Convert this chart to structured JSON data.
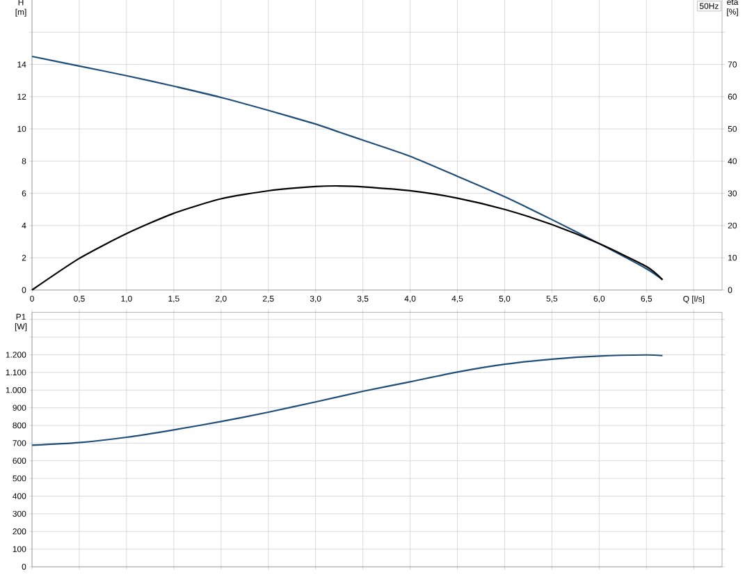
{
  "chart_data": [
    {
      "type": "line",
      "xlabel": "Q [l/s]",
      "ylabel": "H [m]",
      "y2label": "eta [%]",
      "annotations": [
        "50Hz"
      ],
      "x": [
        0,
        0.5,
        1.0,
        1.5,
        2.0,
        2.5,
        3.0,
        3.25,
        3.5,
        4.0,
        4.5,
        5.0,
        5.5,
        6.0,
        6.5,
        6.67
      ],
      "series": [
        {
          "color": "#1f4e79",
          "axis": "y",
          "values": [
            14.5,
            13.9,
            13.3,
            12.65,
            11.95,
            11.15,
            10.3,
            9.8,
            9.3,
            8.3,
            7.06,
            5.79,
            4.37,
            2.88,
            1.32,
            0.64
          ]
        },
        {
          "color": "#000000",
          "axis": "y2",
          "values": [
            0,
            9.8,
            17.5,
            23.8,
            28.3,
            30.8,
            32.1,
            32.3,
            32.0,
            30.8,
            28.5,
            25.0,
            20.3,
            14.4,
            7.3,
            3.2
          ]
        }
      ],
      "xlim": [
        0,
        7.3
      ],
      "xticks": [
        0,
        {
          "value": 0.5,
          "label": "0,5"
        },
        {
          "value": 1.0,
          "label": "1,0"
        },
        {
          "value": 1.5,
          "label": "1,5"
        },
        {
          "value": 2.0,
          "label": "2,0"
        },
        {
          "value": 2.5,
          "label": "2,5"
        },
        {
          "value": 3.0,
          "label": "3,0"
        },
        {
          "value": 3.5,
          "label": "3,5"
        },
        {
          "value": 4.0,
          "label": "4,0"
        },
        {
          "value": 4.5,
          "label": "4,5"
        },
        {
          "value": 5.0,
          "label": "5,0"
        },
        {
          "value": 5.5,
          "label": "5,5"
        },
        {
          "value": 6.0,
          "label": "6,0"
        },
        {
          "value": 6.5,
          "label": "6,5"
        },
        {
          "value": 7.0,
          "label": null
        }
      ],
      "ylim": [
        0,
        18
      ],
      "yticks": [
        0,
        2,
        4,
        6,
        8,
        10,
        12,
        14,
        {
          "value": 16,
          "label": null
        }
      ],
      "y2lim": [
        0,
        90
      ],
      "y2ticks": [
        0,
        10,
        20,
        30,
        40,
        50,
        60,
        70,
        {
          "value": 80,
          "label": null
        }
      ],
      "grid": true
    },
    {
      "type": "line",
      "ylabel": "P1 [W]",
      "x": [
        0,
        0.5,
        1.0,
        1.5,
        2.0,
        2.5,
        3.0,
        3.5,
        4.0,
        4.5,
        5.0,
        5.5,
        6.0,
        6.5,
        6.67
      ],
      "series": [
        {
          "color": "#1f4e79",
          "values": [
            688,
            703,
            733,
            775,
            822,
            875,
            933,
            993,
            1047,
            1102,
            1146,
            1175,
            1193,
            1199,
            1195
          ]
        }
      ],
      "xlim": [
        0,
        7.3
      ],
      "xticks": [
        {
          "value": 0,
          "label": null
        },
        {
          "value": 0.5,
          "label": null
        },
        {
          "value": 1.0,
          "label": null
        },
        {
          "value": 1.5,
          "label": null
        },
        {
          "value": 2.0,
          "label": null
        },
        {
          "value": 2.5,
          "label": null
        },
        {
          "value": 3.0,
          "label": null
        },
        {
          "value": 3.5,
          "label": null
        },
        {
          "value": 4.0,
          "label": null
        },
        {
          "value": 4.5,
          "label": null
        },
        {
          "value": 5.0,
          "label": null
        },
        {
          "value": 5.5,
          "label": null
        },
        {
          "value": 6.0,
          "label": null
        },
        {
          "value": 6.5,
          "label": null
        },
        {
          "value": 7.0,
          "label": null
        }
      ],
      "ylim": [
        0,
        1440
      ],
      "yticks": [
        0,
        100,
        200,
        300,
        400,
        500,
        600,
        700,
        800,
        900,
        {
          "value": 1000,
          "label": "1.000"
        },
        {
          "value": 1100,
          "label": "1.100"
        },
        {
          "value": 1200,
          "label": "1.200"
        },
        {
          "value": 1300,
          "label": null
        },
        {
          "value": 1400,
          "label": null
        }
      ],
      "tick_labels": "y",
      "grid": true
    }
  ]
}
